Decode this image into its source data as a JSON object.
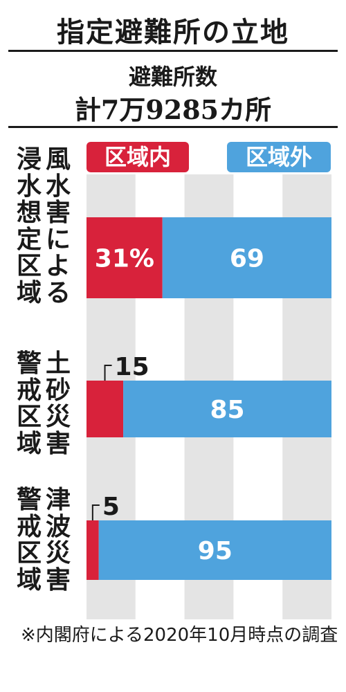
{
  "header": {
    "title": "指定避難所の立地",
    "subtitle_line1": "避難所数",
    "subtitle_line2": "計7万9285カ所"
  },
  "legend": {
    "inside": "区域内",
    "outside": "区域外"
  },
  "row_labels": [
    {
      "col1": "浸水想定区域",
      "col2": "風水害による"
    },
    {
      "col1": "警戒区域",
      "col2": "土砂災害"
    },
    {
      "col1": "警戒区域",
      "col2": "津波災害"
    }
  ],
  "note": "※内閣府による2020年10月時点の調査",
  "colors": {
    "inside": "#d8223b",
    "outside": "#4fa3dd",
    "grid_band": "#e4e4e4"
  },
  "chart_data": {
    "type": "bar",
    "orientation": "horizontal",
    "stacked": true,
    "categories": [
      "風水害による浸水想定区域",
      "土砂災害警戒区域",
      "津波災害警戒区域"
    ],
    "series": [
      {
        "name": "区域内",
        "values": [
          31,
          15,
          5
        ]
      },
      {
        "name": "区域外",
        "values": [
          69,
          85,
          95
        ]
      }
    ],
    "value_labels": {
      "inside": [
        "31%",
        "15",
        "5"
      ],
      "outside": [
        "69",
        "85",
        "95"
      ]
    },
    "xlim": [
      0,
      100
    ],
    "grid": true
  }
}
